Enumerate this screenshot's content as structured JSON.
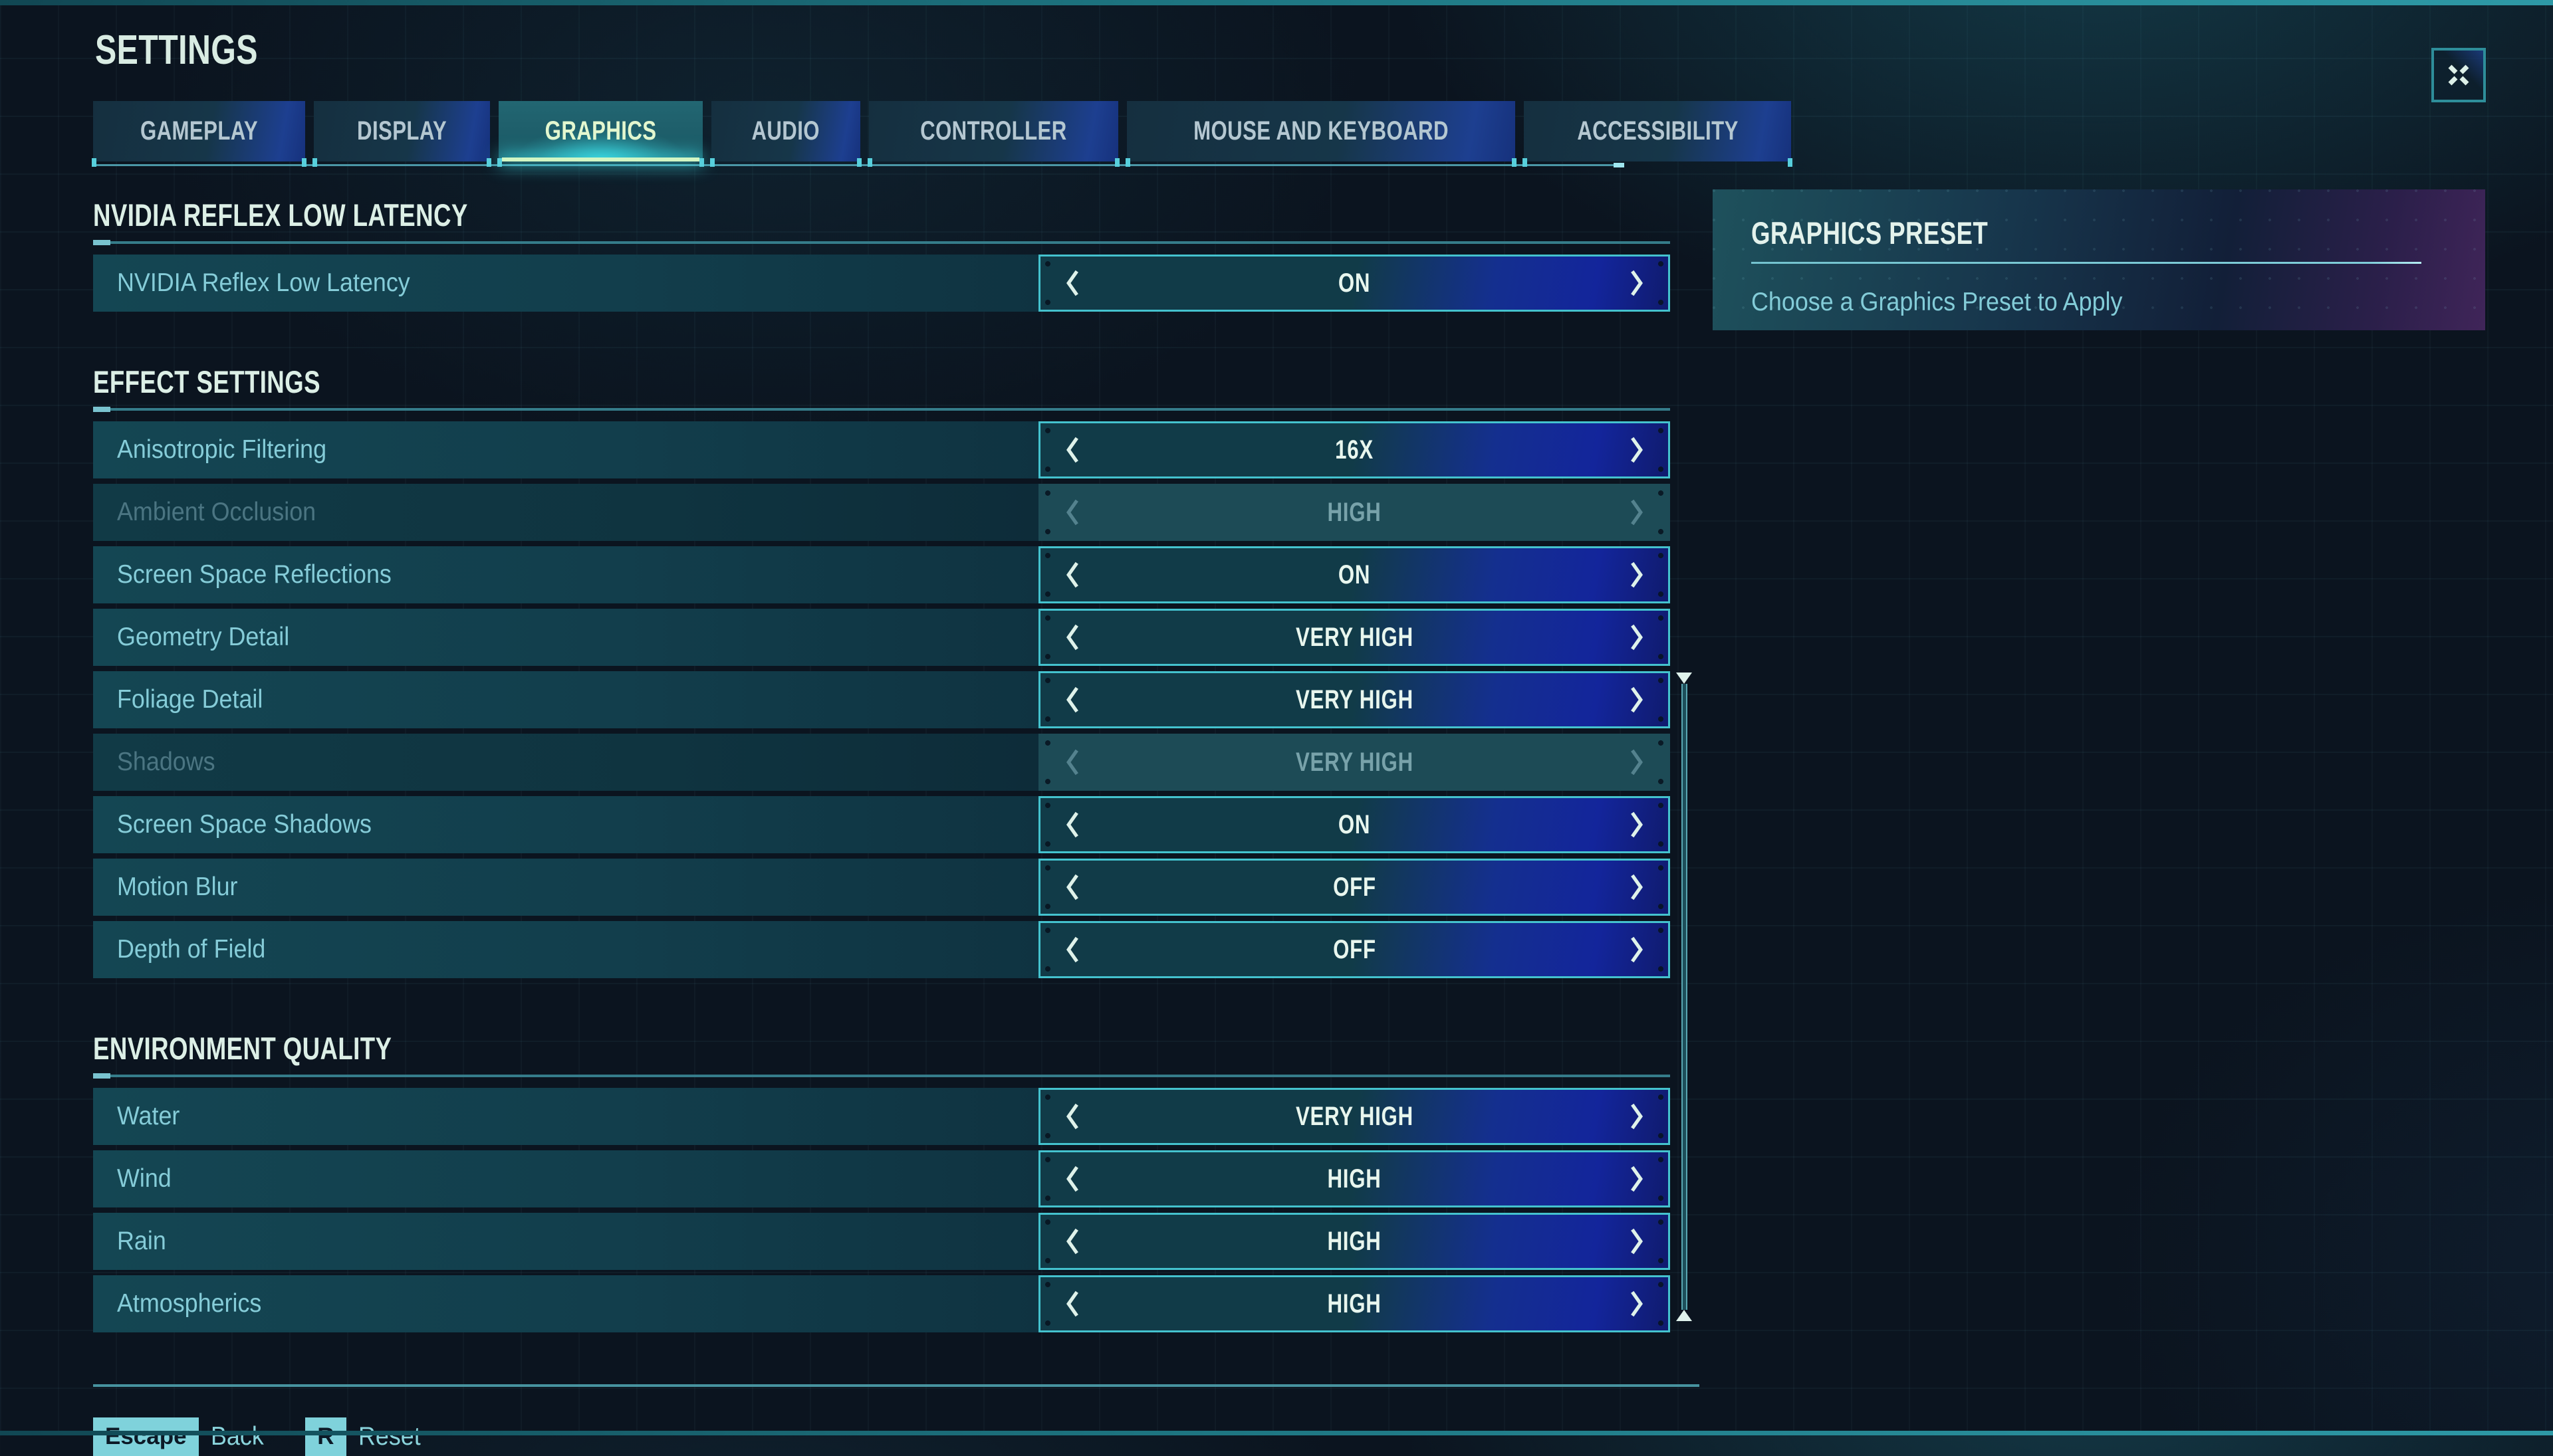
{
  "page_title": "SETTINGS",
  "window": {
    "collapse_icon": "x-cross"
  },
  "tabs": [
    {
      "label": "GAMEPLAY",
      "active": false
    },
    {
      "label": "DISPLAY",
      "active": false
    },
    {
      "label": "GRAPHICS",
      "active": true
    },
    {
      "label": "AUDIO",
      "active": false
    },
    {
      "label": "CONTROLLER",
      "active": false
    },
    {
      "label": "MOUSE AND KEYBOARD",
      "active": false
    },
    {
      "label": "ACCESSIBILITY",
      "active": false
    }
  ],
  "sections": [
    {
      "title": "NVIDIA REFLEX LOW LATENCY",
      "rows": [
        {
          "label": "NVIDIA Reflex Low Latency",
          "value": "ON",
          "disabled": false
        }
      ]
    },
    {
      "title": "EFFECT SETTINGS",
      "rows": [
        {
          "label": "Anisotropic Filtering",
          "value": "16X",
          "disabled": false
        },
        {
          "label": "Ambient Occlusion",
          "value": "HIGH",
          "disabled": true
        },
        {
          "label": "Screen Space Reflections",
          "value": "ON",
          "disabled": false
        },
        {
          "label": "Geometry Detail",
          "value": "VERY HIGH",
          "disabled": false
        },
        {
          "label": "Foliage Detail",
          "value": "VERY HIGH",
          "disabled": false
        },
        {
          "label": "Shadows",
          "value": "VERY HIGH",
          "disabled": true
        },
        {
          "label": "Screen Space Shadows",
          "value": "ON",
          "disabled": false
        },
        {
          "label": "Motion Blur",
          "value": "OFF",
          "disabled": false
        },
        {
          "label": "Depth of Field",
          "value": "OFF",
          "disabled": false
        }
      ]
    },
    {
      "title": "ENVIRONMENT QUALITY",
      "rows": [
        {
          "label": "Water",
          "value": "VERY HIGH",
          "disabled": false
        },
        {
          "label": "Wind",
          "value": "HIGH",
          "disabled": false
        },
        {
          "label": "Rain",
          "value": "HIGH",
          "disabled": false
        },
        {
          "label": "Atmospherics",
          "value": "HIGH",
          "disabled": false
        }
      ]
    }
  ],
  "side_panel": {
    "title": "GRAPHICS PRESET",
    "description": "Choose a Graphics Preset to Apply"
  },
  "footer_hints": [
    {
      "key": "Escape",
      "action": "Back"
    },
    {
      "key": "R",
      "action": "Reset"
    }
  ],
  "icons": {
    "selector_prev": "chevron-left",
    "selector_next": "chevron-right",
    "scrollbar_top_arrow": "triangle-down",
    "scrollbar_bottom_arrow": "triangle-up",
    "collapse": "x-cross"
  },
  "colors": {
    "background": "#0b141f",
    "accent_cyan": "#44c2ce",
    "selector_blue": "#13259b",
    "active_tab_teal": "#1c5a66",
    "active_tab_glow": "#3ee5ee",
    "active_tab_bar": "#d2f6c4",
    "section_rule_teal": "#357c8a",
    "label_cyan": "#85ccd8",
    "value_text": "#e8f6ee",
    "key_badge": "#7fd2db",
    "panel_purple": "#402559",
    "disabled_text": "#4b7582"
  }
}
